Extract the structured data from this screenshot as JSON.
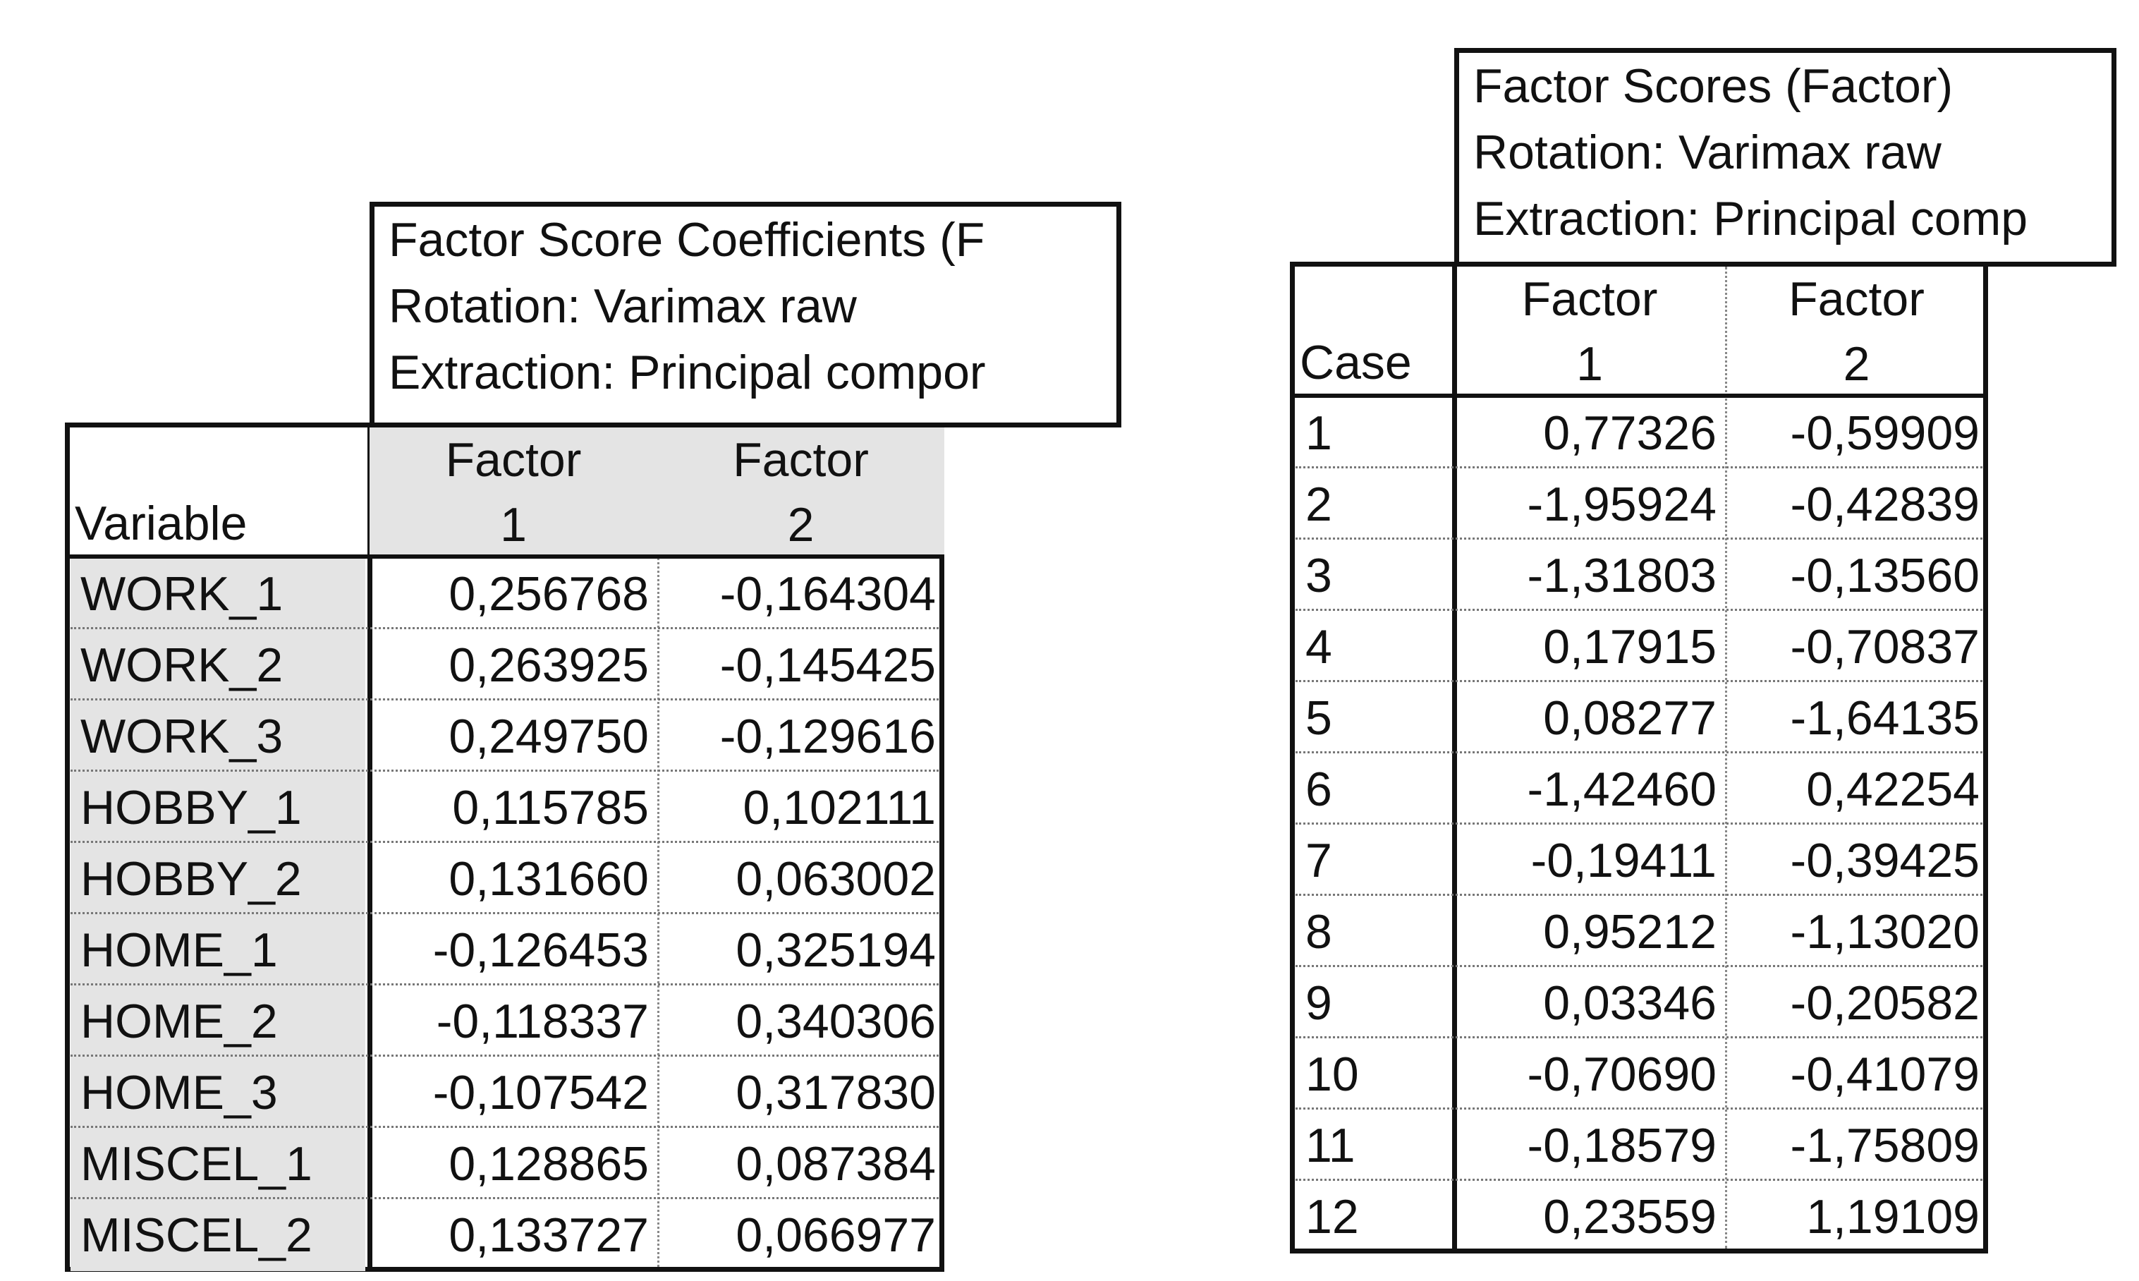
{
  "coefficients_table": {
    "title_lines": [
      "Factor Score Coefficients (F",
      "Rotation: Varimax raw",
      "Extraction: Principal compor"
    ],
    "row_header": "Variable",
    "columns": [
      {
        "line1": "Factor",
        "line2": "1"
      },
      {
        "line1": "Factor",
        "line2": "2"
      }
    ],
    "rows": [
      {
        "name": "WORK_1",
        "values": [
          "0,256768",
          "-0,164304"
        ]
      },
      {
        "name": "WORK_2",
        "values": [
          "0,263925",
          "-0,145425"
        ]
      },
      {
        "name": "WORK_3",
        "values": [
          "0,249750",
          "-0,129616"
        ]
      },
      {
        "name": "HOBBY_1",
        "values": [
          "0,115785",
          "0,102111"
        ]
      },
      {
        "name": "HOBBY_2",
        "values": [
          "0,131660",
          "0,063002"
        ]
      },
      {
        "name": "HOME_1",
        "values": [
          "-0,126453",
          "0,325194"
        ]
      },
      {
        "name": "HOME_2",
        "values": [
          "-0,118337",
          "0,340306"
        ]
      },
      {
        "name": "HOME_3",
        "values": [
          "-0,107542",
          "0,317830"
        ]
      },
      {
        "name": "MISCEL_1",
        "values": [
          "0,128865",
          "0,087384"
        ]
      },
      {
        "name": "MISCEL_2",
        "values": [
          "0,133727",
          "0,066977"
        ]
      }
    ]
  },
  "scores_table": {
    "title_lines": [
      "Factor Scores (Factor)",
      "Rotation: Varimax raw",
      "Extraction: Principal comp"
    ],
    "row_header": "Case",
    "columns": [
      {
        "line1": "Factor",
        "line2": "1"
      },
      {
        "line1": "Factor",
        "line2": "2"
      }
    ],
    "rows": [
      {
        "name": "1",
        "values": [
          "0,77326",
          "-0,59909"
        ]
      },
      {
        "name": "2",
        "values": [
          "-1,95924",
          "-0,42839"
        ]
      },
      {
        "name": "3",
        "values": [
          "-1,31803",
          "-0,13560"
        ]
      },
      {
        "name": "4",
        "values": [
          "0,17915",
          "-0,70837"
        ]
      },
      {
        "name": "5",
        "values": [
          "0,08277",
          "-1,64135"
        ]
      },
      {
        "name": "6",
        "values": [
          "-1,42460",
          "0,42254"
        ]
      },
      {
        "name": "7",
        "values": [
          "-0,19411",
          "-0,39425"
        ]
      },
      {
        "name": "8",
        "values": [
          "0,95212",
          "-1,13020"
        ]
      },
      {
        "name": "9",
        "values": [
          "0,03346",
          "-0,20582"
        ]
      },
      {
        "name": "10",
        "values": [
          "-0,70690",
          "-0,41079"
        ]
      },
      {
        "name": "11",
        "values": [
          "-0,18579",
          "-1,75809"
        ]
      },
      {
        "name": "12",
        "values": [
          "0,23559",
          "1,19109"
        ]
      }
    ]
  }
}
